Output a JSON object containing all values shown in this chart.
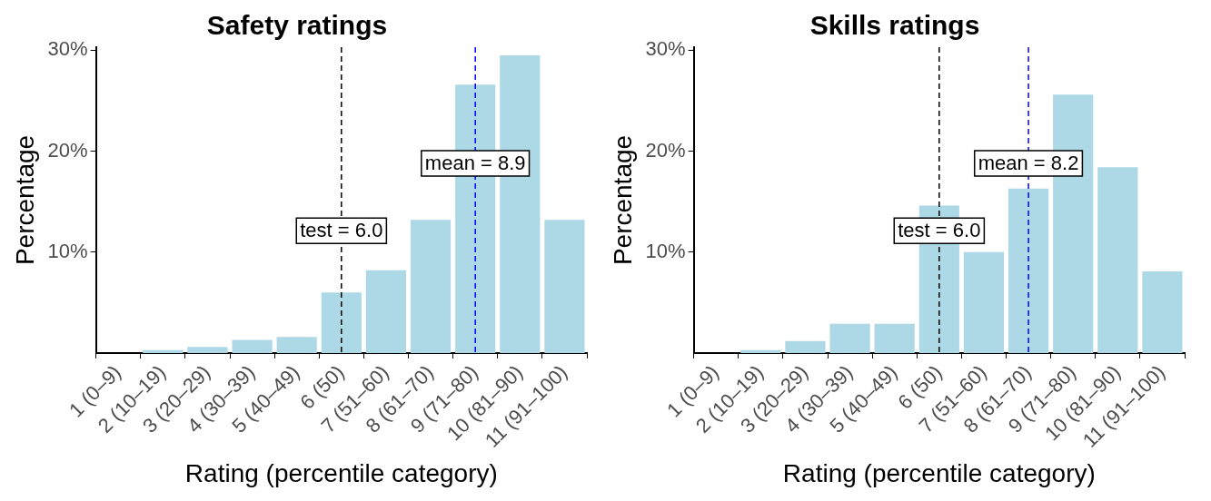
{
  "chart_data": [
    {
      "type": "bar",
      "title": "Safety ratings",
      "xlabel": "Rating (percentile category)",
      "ylabel": "Percentage",
      "categories": [
        "1 (0–9)",
        "2 (10–19)",
        "3 (20–29)",
        "4 (30–39)",
        "5 (40–49)",
        "6 (50)",
        "7 (51–60)",
        "8 (61–70)",
        "9 (71–80)",
        "10 (81–90)",
        "11 (91–100)"
      ],
      "values": [
        0,
        0.3,
        0.6,
        1.3,
        1.6,
        6.0,
        8.2,
        13.2,
        26.6,
        29.5,
        13.2
      ],
      "color": "#add8e6",
      "ylim": [
        0,
        30.3
      ],
      "yticks": [
        {
          "value": 10,
          "label": "10%"
        },
        {
          "value": 20,
          "label": "20%"
        },
        {
          "value": 30,
          "label": "30%"
        }
      ],
      "grid": false,
      "legend": false,
      "ref_lines": [
        {
          "axis": "x",
          "value": "6 (50)",
          "label": "test = 6.0",
          "color": "#000000",
          "line_style": "dashed"
        },
        {
          "axis": "x",
          "value": "9 (71–80)",
          "label": "mean = 8.9",
          "color": "#0000ff",
          "line_style": "dashed"
        }
      ]
    },
    {
      "type": "bar",
      "title": "Skills ratings",
      "xlabel": "Rating (percentile category)",
      "ylabel": "Percentage",
      "categories": [
        "1 (0–9)",
        "2 (10–19)",
        "3 (20–29)",
        "4 (30–39)",
        "5 (40–49)",
        "6 (50)",
        "7 (51–60)",
        "8 (61–70)",
        "9 (71–80)",
        "10 (81–90)",
        "11 (91–100)"
      ],
      "values": [
        0,
        0.3,
        1.2,
        2.9,
        2.9,
        14.6,
        10.0,
        16.3,
        25.6,
        18.4,
        8.1
      ],
      "color": "#add8e6",
      "ylim": [
        0,
        30.3
      ],
      "yticks": [
        {
          "value": 10,
          "label": "10%"
        },
        {
          "value": 20,
          "label": "20%"
        },
        {
          "value": 30,
          "label": "30%"
        }
      ],
      "grid": false,
      "legend": false,
      "ref_lines": [
        {
          "axis": "x",
          "value": "6 (50)",
          "label": "test = 6.0",
          "color": "#000000",
          "line_style": "dashed"
        },
        {
          "axis": "x",
          "value": "8 (61–70)",
          "label": "mean = 8.2",
          "color": "#0000ff",
          "line_style": "dashed"
        }
      ]
    }
  ]
}
